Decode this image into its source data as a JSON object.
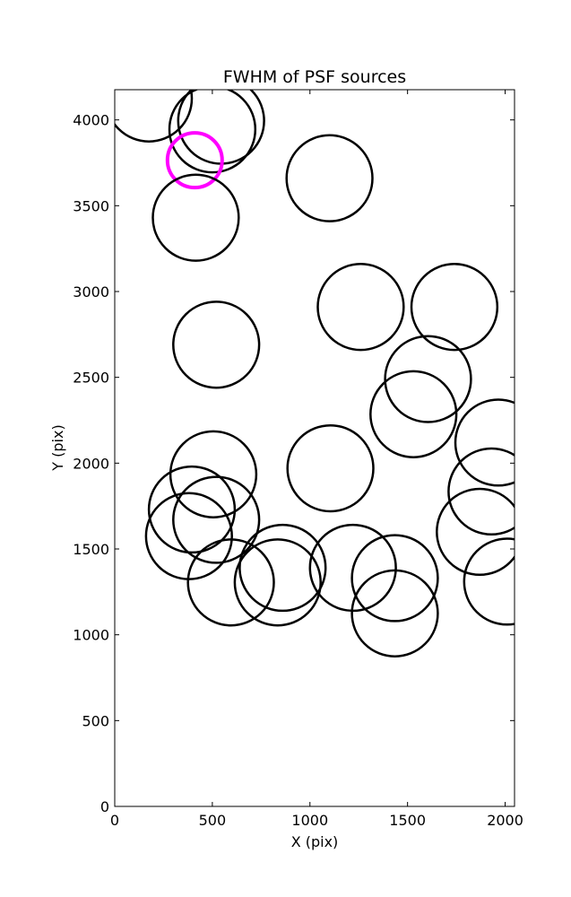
{
  "chart_data": {
    "type": "scatter",
    "title": "FWHM of PSF sources",
    "xlabel": "X (pix)",
    "ylabel": "Y (pix)",
    "xlim": [
      0,
      2048
    ],
    "ylim": [
      0,
      4176
    ],
    "xticks": [
      0,
      500,
      1000,
      1500,
      2000
    ],
    "yticks": [
      0,
      500,
      1000,
      1500,
      2000,
      2500,
      3000,
      3500,
      4000
    ],
    "grid": false,
    "marker": "open-circle",
    "marker_size_meaning": "FWHM",
    "highlight_color": "#ff00ff",
    "default_color": "#000000",
    "sources": [
      {
        "x": 175,
        "y": 4125,
        "fwhm": 220,
        "highlight": false
      },
      {
        "x": 545,
        "y": 3995,
        "fwhm": 220,
        "highlight": false
      },
      {
        "x": 500,
        "y": 3945,
        "fwhm": 220,
        "highlight": false
      },
      {
        "x": 410,
        "y": 3765,
        "fwhm": 140,
        "highlight": true
      },
      {
        "x": 1100,
        "y": 3660,
        "fwhm": 220,
        "highlight": false
      },
      {
        "x": 415,
        "y": 3430,
        "fwhm": 220,
        "highlight": false
      },
      {
        "x": 1260,
        "y": 2910,
        "fwhm": 220,
        "highlight": false
      },
      {
        "x": 1740,
        "y": 2910,
        "fwhm": 220,
        "highlight": false
      },
      {
        "x": 520,
        "y": 2690,
        "fwhm": 220,
        "highlight": false
      },
      {
        "x": 1605,
        "y": 2490,
        "fwhm": 220,
        "highlight": false
      },
      {
        "x": 1530,
        "y": 2285,
        "fwhm": 220,
        "highlight": false
      },
      {
        "x": 1965,
        "y": 2120,
        "fwhm": 220,
        "highlight": false
      },
      {
        "x": 1105,
        "y": 1970,
        "fwhm": 220,
        "highlight": false
      },
      {
        "x": 505,
        "y": 1935,
        "fwhm": 220,
        "highlight": false
      },
      {
        "x": 1930,
        "y": 1835,
        "fwhm": 220,
        "highlight": false
      },
      {
        "x": 395,
        "y": 1730,
        "fwhm": 220,
        "highlight": false
      },
      {
        "x": 520,
        "y": 1670,
        "fwhm": 220,
        "highlight": false
      },
      {
        "x": 1870,
        "y": 1600,
        "fwhm": 220,
        "highlight": false
      },
      {
        "x": 380,
        "y": 1575,
        "fwhm": 220,
        "highlight": false
      },
      {
        "x": 860,
        "y": 1390,
        "fwhm": 220,
        "highlight": false
      },
      {
        "x": 1220,
        "y": 1390,
        "fwhm": 220,
        "highlight": false
      },
      {
        "x": 1435,
        "y": 1330,
        "fwhm": 220,
        "highlight": false
      },
      {
        "x": 2010,
        "y": 1310,
        "fwhm": 220,
        "highlight": false
      },
      {
        "x": 595,
        "y": 1305,
        "fwhm": 220,
        "highlight": false
      },
      {
        "x": 835,
        "y": 1305,
        "fwhm": 220,
        "highlight": false
      },
      {
        "x": 1435,
        "y": 1125,
        "fwhm": 220,
        "highlight": false
      }
    ]
  }
}
